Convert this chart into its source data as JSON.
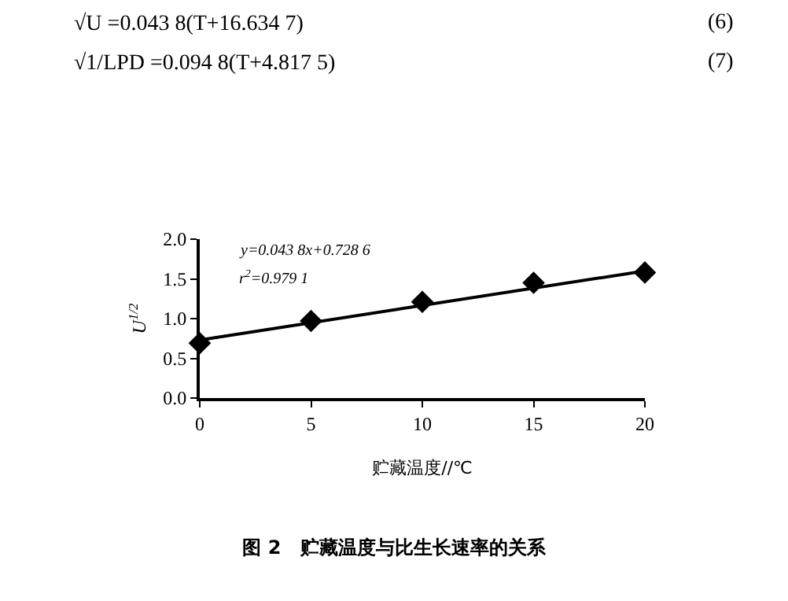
{
  "chart_data": {
    "type": "scatter",
    "title": "图 2　贮藏温度与比生长速率的关系",
    "xlabel": "贮藏温度//℃",
    "ylabel": "U$^{1/2}$",
    "annotations": [
      "√U =0.043 8(T+16.634 7)",
      "(6)",
      "√1/LPD =0.094 8(T+4.817 5)",
      "(7)",
      "y=0.043 8x+0.728 6",
      "r$^{2}$=0.979 1"
    ],
    "x": [
      0,
      5,
      10,
      15,
      20
    ],
    "series": [
      {
        "color": "#000000",
        "marker": "diamond",
        "values": [
          0.69,
          0.97,
          1.21,
          1.45,
          1.58
        ]
      },
      {
        "type": "line",
        "color": "#000000",
        "marker": "none",
        "line_style": "solid",
        "x": [
          0,
          20
        ],
        "values": [
          0.73,
          1.6
        ]
      }
    ],
    "xlim": [
      0,
      20
    ],
    "xticks": [
      0,
      5,
      10,
      15,
      20
    ],
    "ylim": [
      0,
      2
    ],
    "yticks": [
      {
        "value": 0,
        "label": "0.0"
      },
      {
        "value": 0.5,
        "label": "0.5"
      },
      {
        "value": 1,
        "label": "1.0"
      },
      {
        "value": 1.5,
        "label": "1.5"
      },
      {
        "value": 2,
        "label": "2.0"
      }
    ],
    "tick_labels": true
  }
}
